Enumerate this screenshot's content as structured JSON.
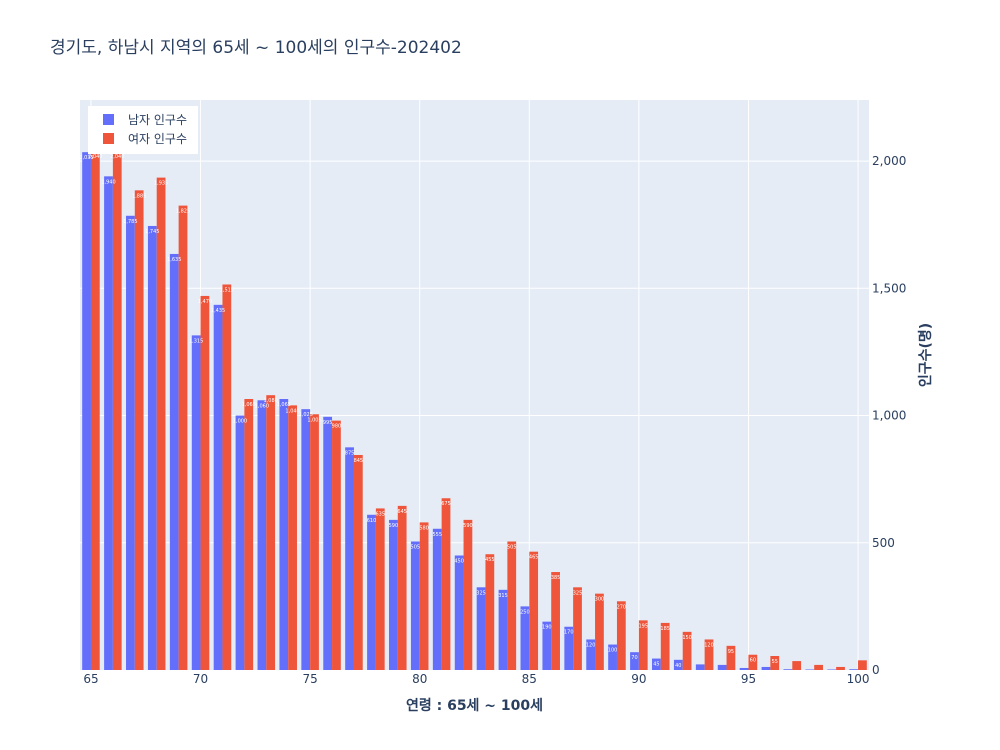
{
  "chart_data": {
    "type": "bar",
    "title": "경기도,  하남시 지역의 65세 ~ 100세의 인구수-202402",
    "xlabel": "연령 : 65세 ~ 100세",
    "ylabel": "인구수(명)",
    "x": [
      65,
      66,
      67,
      68,
      69,
      70,
      71,
      72,
      73,
      74,
      75,
      76,
      77,
      78,
      79,
      80,
      81,
      82,
      83,
      84,
      85,
      86,
      87,
      88,
      89,
      90,
      91,
      92,
      93,
      94,
      95,
      96,
      97,
      98,
      99,
      100
    ],
    "series": [
      {
        "name": "남자 인구수",
        "color": "#636efa",
        "values": [
          2035,
          1940,
          1785,
          1745,
          1635,
          1315,
          1435,
          1000,
          1060,
          1065,
          1025,
          995,
          875,
          610,
          590,
          505,
          555,
          450,
          325,
          315,
          250,
          190,
          170,
          120,
          100,
          70,
          45,
          40,
          22,
          20,
          8,
          12,
          3,
          2,
          2,
          3
        ]
      },
      {
        "name": "여자 인구수",
        "color": "#ef553b",
        "values": [
          2040,
          2040,
          1885,
          1935,
          1825,
          1470,
          1515,
          1065,
          1080,
          1040,
          1005,
          980,
          845,
          635,
          645,
          580,
          675,
          590,
          455,
          505,
          465,
          385,
          325,
          300,
          270,
          195,
          185,
          150,
          120,
          95,
          60,
          55,
          35,
          20,
          12,
          38
        ]
      }
    ],
    "xlim": [
      64.5,
      100.5
    ],
    "ylim": [
      0,
      2240
    ],
    "x_ticks": [
      65,
      70,
      75,
      80,
      85,
      90,
      95,
      100
    ],
    "y_ticks": [
      0,
      500,
      1000,
      1500,
      2000
    ],
    "y_tick_labels": [
      "0",
      "500",
      "1,000",
      "1,500",
      "2,000"
    ],
    "y_axis_side": "right",
    "grid": true,
    "legend": "top-left",
    "plot_background": "#e5ecf6"
  }
}
